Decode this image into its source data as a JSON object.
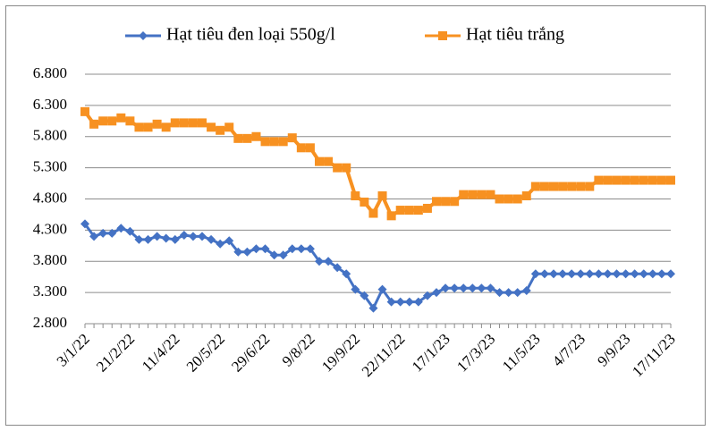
{
  "chart_data": {
    "type": "line",
    "categories": [
      "3/1/22",
      null,
      null,
      null,
      null,
      "21/2/22",
      null,
      null,
      null,
      null,
      "11/4/22",
      null,
      null,
      null,
      null,
      "20/5/22",
      null,
      null,
      null,
      null,
      "29/6/22",
      null,
      null,
      null,
      null,
      "9/8/22",
      null,
      null,
      null,
      null,
      "19/9/22",
      null,
      null,
      null,
      null,
      "22/11/22",
      null,
      null,
      null,
      null,
      "17/1/23",
      null,
      null,
      null,
      null,
      "17/3/23",
      null,
      null,
      null,
      null,
      "11/5/23",
      null,
      null,
      null,
      null,
      "4/7/23",
      null,
      null,
      null,
      null,
      "9/9/23",
      null,
      null,
      null,
      null,
      "17/11/23"
    ],
    "series": [
      {
        "name": "Hạt tiêu đen loại 550g/l",
        "color": "#4472c4",
        "marker": "diamond",
        "values": [
          4400,
          4200,
          4250,
          4250,
          4330,
          4280,
          4150,
          4150,
          4200,
          4170,
          4150,
          4220,
          4200,
          4200,
          4150,
          4080,
          4130,
          3950,
          3950,
          4000,
          4000,
          3900,
          3900,
          4000,
          4000,
          4000,
          3800,
          3800,
          3700,
          3600,
          3350,
          3250,
          3050,
          3350,
          3150,
          3150,
          3150,
          3150,
          3250,
          3300,
          3370,
          3370,
          3370,
          3370,
          3370,
          3370,
          3300,
          3300,
          3300,
          3330,
          3600,
          3600,
          3600,
          3600,
          3600,
          3600,
          3600,
          3600,
          3600,
          3600,
          3600,
          3600,
          3600,
          3600,
          3600,
          3600
        ]
      },
      {
        "name": "Hạt tiêu trắng",
        "color": "#f79121",
        "marker": "square",
        "values": [
          6200,
          6000,
          6050,
          6050,
          6100,
          6050,
          5950,
          5950,
          6000,
          5950,
          6020,
          6020,
          6020,
          6020,
          5950,
          5900,
          5950,
          5770,
          5770,
          5800,
          5720,
          5720,
          5720,
          5780,
          5620,
          5620,
          5400,
          5400,
          5300,
          5300,
          4850,
          4750,
          4570,
          4850,
          4530,
          4620,
          4620,
          4620,
          4650,
          4760,
          4760,
          4760,
          4870,
          4870,
          4870,
          4870,
          4800,
          4800,
          4800,
          4850,
          5000,
          5000,
          5000,
          5000,
          5000,
          5000,
          5000,
          5100,
          5100,
          5100,
          5100,
          5100,
          5100,
          5100,
          5100,
          5100
        ]
      }
    ],
    "ylim": [
      2800,
      6800
    ],
    "yticks": [
      {
        "value": 2800,
        "label": "2.800"
      },
      {
        "value": 3300,
        "label": "3.300"
      },
      {
        "value": 3800,
        "label": "3.800"
      },
      {
        "value": 4300,
        "label": "4.300"
      },
      {
        "value": 4800,
        "label": "4.800"
      },
      {
        "value": 5300,
        "label": "5.300"
      },
      {
        "value": 5800,
        "label": "5.800"
      },
      {
        "value": 6300,
        "label": "6.300"
      },
      {
        "value": 6800,
        "label": "6.800"
      }
    ],
    "grid": true,
    "legend": "top"
  }
}
